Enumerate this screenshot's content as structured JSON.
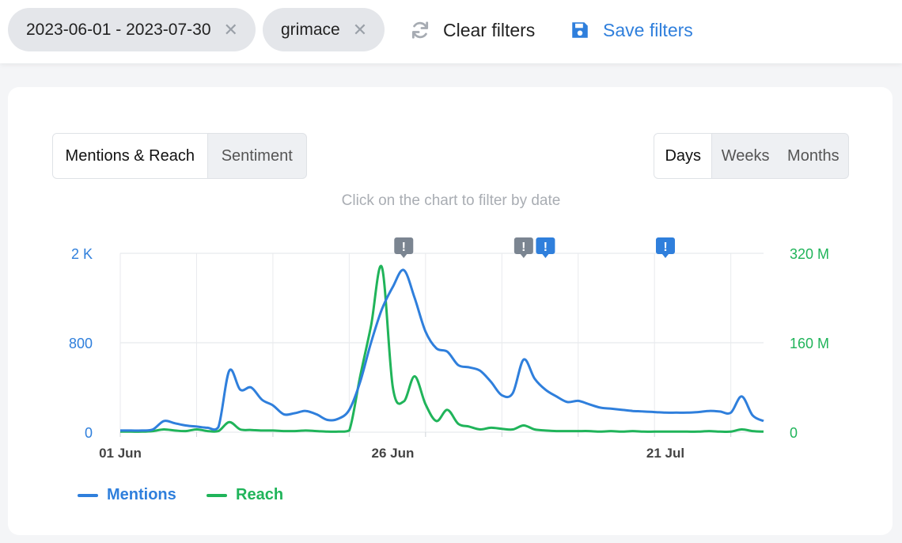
{
  "filters": {
    "date_range": "2023-06-01 - 2023-07-30",
    "keyword": "grimace",
    "remove_glyph": "✕",
    "clear_label": "Clear filters",
    "save_label": "Save filters"
  },
  "tabs": {
    "metric": [
      "Mentions & Reach",
      "Sentiment"
    ],
    "period": [
      "Days",
      "Weeks",
      "Months"
    ]
  },
  "hint": "Click on the chart to filter by date",
  "colors": {
    "mentions": "#2f7fdc",
    "reach": "#20b45a",
    "grid": "#e8eaed",
    "alert_gray": "#7b8591",
    "alert_blue": "#2f7fdc"
  },
  "chart_data": {
    "type": "line",
    "x_start": "2023-06-01",
    "x_end": "2023-07-30",
    "x_ticks": [
      "01 Jun",
      "26 Jun",
      "21 Jul"
    ],
    "y_left": {
      "range": [
        0,
        1600
      ],
      "ticks": [
        "0",
        "800",
        "2 K"
      ]
    },
    "y_right": {
      "range": [
        0,
        320000000
      ],
      "ticks": [
        "0",
        "160 M",
        "320 M"
      ]
    },
    "series": [
      {
        "name": "Mentions",
        "axis": "left",
        "points": [
          [
            "2023-06-01",
            15
          ],
          [
            "2023-06-02",
            15
          ],
          [
            "2023-06-03",
            15
          ],
          [
            "2023-06-04",
            25
          ],
          [
            "2023-06-05",
            100
          ],
          [
            "2023-06-06",
            80
          ],
          [
            "2023-06-07",
            60
          ],
          [
            "2023-06-08",
            50
          ],
          [
            "2023-06-09",
            40
          ],
          [
            "2023-06-10",
            45
          ],
          [
            "2023-06-11",
            550
          ],
          [
            "2023-06-12",
            380
          ],
          [
            "2023-06-13",
            400
          ],
          [
            "2023-06-14",
            290
          ],
          [
            "2023-06-15",
            240
          ],
          [
            "2023-06-16",
            160
          ],
          [
            "2023-06-17",
            170
          ],
          [
            "2023-06-18",
            190
          ],
          [
            "2023-06-19",
            160
          ],
          [
            "2023-06-20",
            110
          ],
          [
            "2023-06-21",
            120
          ],
          [
            "2023-06-22",
            200
          ],
          [
            "2023-06-23",
            450
          ],
          [
            "2023-06-24",
            800
          ],
          [
            "2023-06-25",
            1100
          ],
          [
            "2023-06-26",
            1300
          ],
          [
            "2023-06-27",
            1450
          ],
          [
            "2023-06-28",
            1200
          ],
          [
            "2023-06-29",
            900
          ],
          [
            "2023-06-30",
            750
          ],
          [
            "2023-07-01",
            720
          ],
          [
            "2023-07-02",
            600
          ],
          [
            "2023-07-03",
            580
          ],
          [
            "2023-07-04",
            550
          ],
          [
            "2023-07-05",
            450
          ],
          [
            "2023-07-06",
            330
          ],
          [
            "2023-07-07",
            350
          ],
          [
            "2023-07-08",
            650
          ],
          [
            "2023-07-09",
            480
          ],
          [
            "2023-07-10",
            380
          ],
          [
            "2023-07-11",
            320
          ],
          [
            "2023-07-12",
            270
          ],
          [
            "2023-07-13",
            280
          ],
          [
            "2023-07-14",
            250
          ],
          [
            "2023-07-15",
            220
          ],
          [
            "2023-07-16",
            210
          ],
          [
            "2023-07-17",
            200
          ],
          [
            "2023-07-18",
            190
          ],
          [
            "2023-07-19",
            185
          ],
          [
            "2023-07-20",
            180
          ],
          [
            "2023-07-21",
            175
          ],
          [
            "2023-07-22",
            175
          ],
          [
            "2023-07-23",
            175
          ],
          [
            "2023-07-24",
            180
          ],
          [
            "2023-07-25",
            190
          ],
          [
            "2023-07-26",
            185
          ],
          [
            "2023-07-27",
            175
          ],
          [
            "2023-07-28",
            320
          ],
          [
            "2023-07-29",
            150
          ],
          [
            "2023-07-30",
            100
          ]
        ]
      },
      {
        "name": "Reach",
        "axis": "right",
        "points": [
          [
            "2023-06-01",
            1000000
          ],
          [
            "2023-06-02",
            1000000
          ],
          [
            "2023-06-03",
            1000000
          ],
          [
            "2023-06-04",
            2000000
          ],
          [
            "2023-06-05",
            5000000
          ],
          [
            "2023-06-06",
            3000000
          ],
          [
            "2023-06-07",
            2000000
          ],
          [
            "2023-06-08",
            5000000
          ],
          [
            "2023-06-09",
            2000000
          ],
          [
            "2023-06-10",
            2000000
          ],
          [
            "2023-06-11",
            18000000
          ],
          [
            "2023-06-12",
            5000000
          ],
          [
            "2023-06-13",
            4000000
          ],
          [
            "2023-06-14",
            3000000
          ],
          [
            "2023-06-15",
            3000000
          ],
          [
            "2023-06-16",
            2000000
          ],
          [
            "2023-06-17",
            2000000
          ],
          [
            "2023-06-18",
            3000000
          ],
          [
            "2023-06-19",
            2000000
          ],
          [
            "2023-06-20",
            1000000
          ],
          [
            "2023-06-21",
            1000000
          ],
          [
            "2023-06-22",
            3000000
          ],
          [
            "2023-06-23",
            100000000
          ],
          [
            "2023-06-24",
            190000000
          ],
          [
            "2023-06-25",
            295000000
          ],
          [
            "2023-06-26",
            80000000
          ],
          [
            "2023-06-27",
            55000000
          ],
          [
            "2023-06-28",
            100000000
          ],
          [
            "2023-06-29",
            50000000
          ],
          [
            "2023-06-30",
            20000000
          ],
          [
            "2023-07-01",
            40000000
          ],
          [
            "2023-07-02",
            15000000
          ],
          [
            "2023-07-03",
            10000000
          ],
          [
            "2023-07-04",
            5000000
          ],
          [
            "2023-07-05",
            8000000
          ],
          [
            "2023-07-06",
            6000000
          ],
          [
            "2023-07-07",
            5000000
          ],
          [
            "2023-07-08",
            12000000
          ],
          [
            "2023-07-09",
            5000000
          ],
          [
            "2023-07-10",
            3000000
          ],
          [
            "2023-07-11",
            2000000
          ],
          [
            "2023-07-12",
            2000000
          ],
          [
            "2023-07-13",
            2000000
          ],
          [
            "2023-07-14",
            2000000
          ],
          [
            "2023-07-15",
            1000000
          ],
          [
            "2023-07-16",
            2000000
          ],
          [
            "2023-07-17",
            1000000
          ],
          [
            "2023-07-18",
            2000000
          ],
          [
            "2023-07-19",
            1000000
          ],
          [
            "2023-07-20",
            1000000
          ],
          [
            "2023-07-21",
            1000000
          ],
          [
            "2023-07-22",
            1000000
          ],
          [
            "2023-07-23",
            1000000
          ],
          [
            "2023-07-24",
            1000000
          ],
          [
            "2023-07-25",
            2000000
          ],
          [
            "2023-07-26",
            1000000
          ],
          [
            "2023-07-27",
            1000000
          ],
          [
            "2023-07-28",
            5000000
          ],
          [
            "2023-07-29",
            2000000
          ],
          [
            "2023-07-30",
            1000000
          ]
        ]
      }
    ],
    "alerts": [
      {
        "date": "2023-06-27",
        "color": "gray"
      },
      {
        "date": "2023-07-08",
        "color": "gray"
      },
      {
        "date": "2023-07-10",
        "color": "blue"
      },
      {
        "date": "2023-07-21",
        "color": "blue"
      }
    ],
    "alert_glyph": "!",
    "grid": true,
    "legend_position": "bottom-left"
  }
}
